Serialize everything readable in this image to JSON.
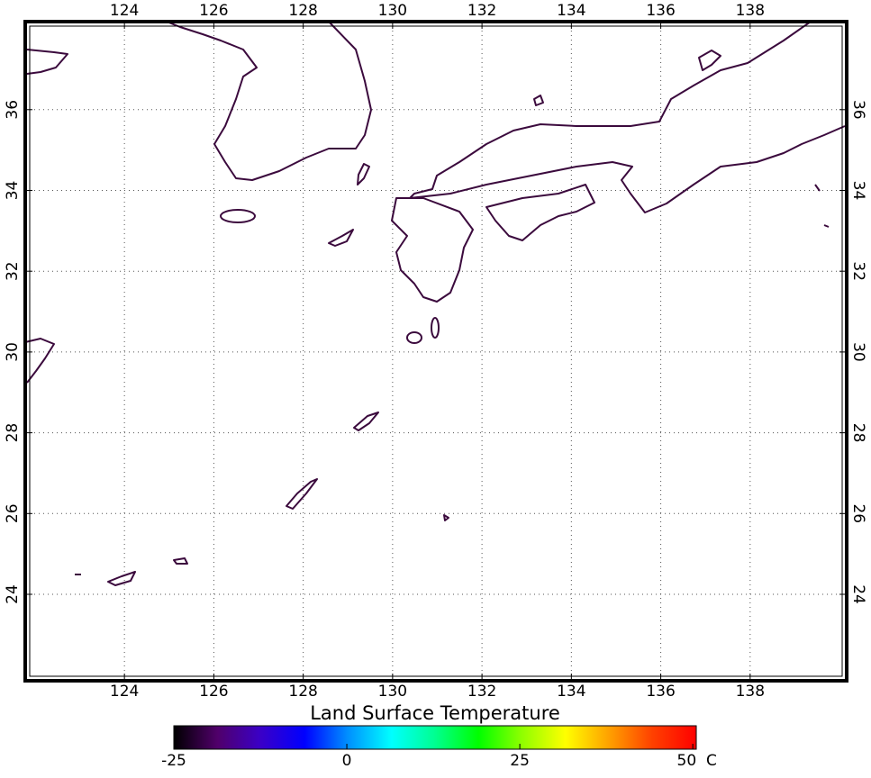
{
  "map": {
    "xticks": [
      124,
      126,
      128,
      130,
      132,
      134,
      136,
      138
    ],
    "yticks": [
      24,
      26,
      28,
      30,
      32,
      34,
      36
    ],
    "xlim": [
      121.78,
      140.16
    ],
    "ylim": [
      21.86,
      38.18
    ],
    "coastline_color": "#3b0a3d",
    "grid": true
  },
  "colorbar": {
    "title": "Land Surface Temperature",
    "unit": "C",
    "ticks": [
      -25,
      0,
      25,
      50
    ],
    "lim": [
      -25,
      50.5
    ],
    "colormap": [
      "#000000",
      "#50006a",
      "#3a00c8",
      "#0000ff",
      "#0090ff",
      "#00ffff",
      "#00ff90",
      "#00ff00",
      "#90ff00",
      "#ffff00",
      "#ffa000",
      "#ff4000",
      "#ff0000"
    ]
  }
}
